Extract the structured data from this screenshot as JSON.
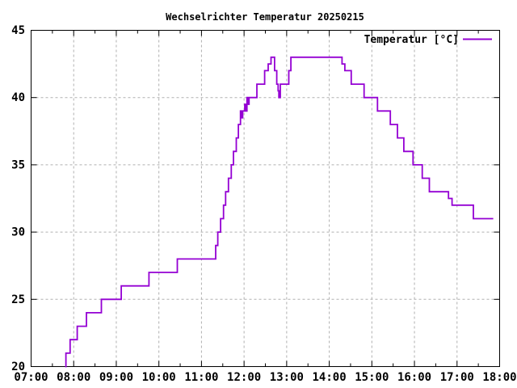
{
  "title": "Wechselrichter Temperatur 20250215",
  "legend": {
    "label": "Temperatur [°C]"
  },
  "colors": {
    "series_line": "#9400D3",
    "grid": "#b0b0b0",
    "axis": "#000000",
    "background": "#ffffff",
    "text": "#000000"
  },
  "chart_data": {
    "type": "line",
    "interpolation": "step-after",
    "title": "Wechselrichter Temperatur 20250215",
    "xlabel": "",
    "ylabel": "",
    "legend_position": "top-right-inside",
    "grid": {
      "show": true,
      "style": "dashed",
      "color": "#b0b0b0"
    },
    "x_axis": {
      "range_hours": [
        7,
        18
      ],
      "tick_labels": [
        "07:00",
        "08:00",
        "09:00",
        "10:00",
        "11:00",
        "12:00",
        "13:00",
        "14:00",
        "15:00",
        "16:00",
        "17:00",
        "18:00"
      ],
      "minor_tick_every_minutes": 30
    },
    "y_axis": {
      "range": [
        20,
        45
      ],
      "tick_labels": [
        "20",
        "25",
        "30",
        "35",
        "40",
        "45"
      ],
      "tick_step": 5
    },
    "series": [
      {
        "name": "Temperatur [°C]",
        "color": "#9400D3",
        "points": [
          [
            "07:48",
            20
          ],
          [
            "07:49",
            21
          ],
          [
            "07:55",
            22
          ],
          [
            "08:05",
            23
          ],
          [
            "08:18",
            24
          ],
          [
            "08:39",
            25
          ],
          [
            "09:07",
            26
          ],
          [
            "09:46",
            27
          ],
          [
            "10:26",
            28
          ],
          [
            "11:20",
            29
          ],
          [
            "11:23",
            30
          ],
          [
            "11:27",
            31
          ],
          [
            "11:31",
            32
          ],
          [
            "11:34",
            33
          ],
          [
            "11:38",
            34
          ],
          [
            "11:42",
            35
          ],
          [
            "11:45",
            36
          ],
          [
            "11:49",
            37
          ],
          [
            "11:52",
            38
          ],
          [
            "11:55",
            39
          ],
          [
            "11:57",
            38.5
          ],
          [
            "11:58",
            39
          ],
          [
            "12:01",
            39.5
          ],
          [
            "12:02",
            39
          ],
          [
            "12:04",
            40
          ],
          [
            "12:05",
            39.5
          ],
          [
            "12:07",
            40
          ],
          [
            "12:18",
            41
          ],
          [
            "12:29",
            42
          ],
          [
            "12:34",
            42.5
          ],
          [
            "12:38",
            43
          ],
          [
            "12:43",
            42
          ],
          [
            "12:46",
            41
          ],
          [
            "12:48",
            40.5
          ],
          [
            "12:49",
            40
          ],
          [
            "12:51",
            41
          ],
          [
            "13:03",
            42
          ],
          [
            "13:06",
            43
          ],
          [
            "14:18",
            42.5
          ],
          [
            "14:22",
            42
          ],
          [
            "14:31",
            41
          ],
          [
            "14:49",
            40
          ],
          [
            "15:08",
            39
          ],
          [
            "15:26",
            38
          ],
          [
            "15:36",
            37
          ],
          [
            "15:45",
            36
          ],
          [
            "15:58",
            35
          ],
          [
            "16:11",
            34
          ],
          [
            "16:21",
            33
          ],
          [
            "16:48",
            32.5
          ],
          [
            "16:53",
            32
          ],
          [
            "17:23",
            31
          ],
          [
            "17:51",
            31
          ]
        ]
      }
    ]
  }
}
